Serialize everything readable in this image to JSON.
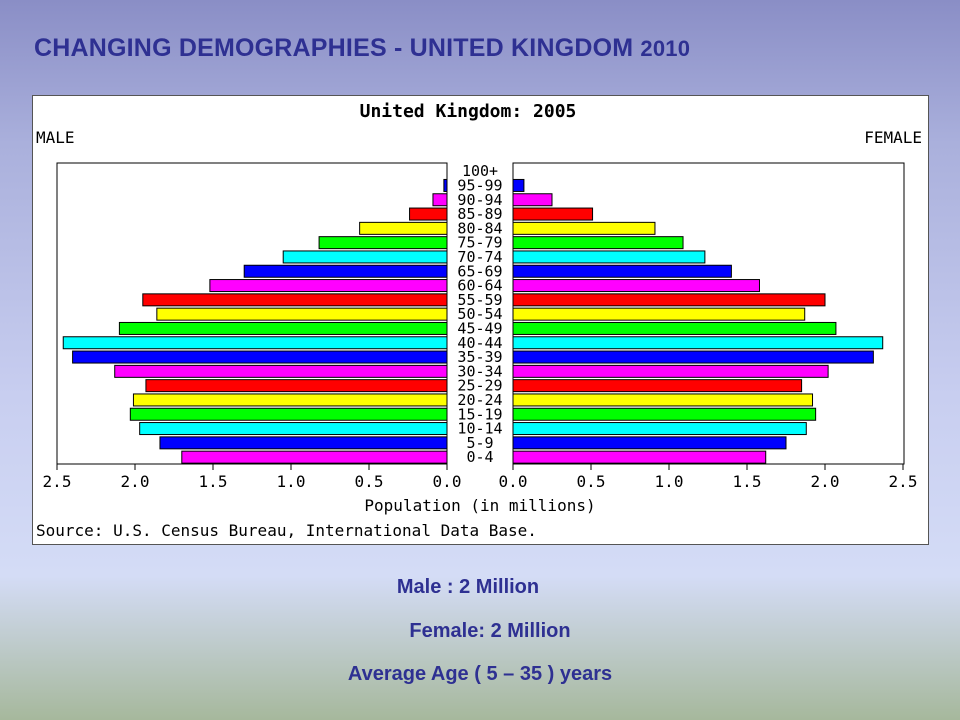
{
  "slide": {
    "title_main": "CHANGING  DEMOGRAPHIES  - UNITED KINGDOM ",
    "title_year": "2010",
    "captions": [
      "Male :  2 Million",
      "Female: 2 Million",
      "Average Age ( 5 – 35 ) years"
    ]
  },
  "chart_data": {
    "type": "bar",
    "title": "United Kingdom: 2005",
    "left_label": "MALE",
    "right_label": "FEMALE",
    "xlabel": "Population (in millions)",
    "source": "Source: U.S. Census Bureau, International Data Base.",
    "xlim": [
      0,
      2.5
    ],
    "x_ticks_left": [
      "2.5",
      "2.0",
      "1.5",
      "1.0",
      "0.5",
      "0.0"
    ],
    "x_ticks_right": [
      "0.0",
      "0.5",
      "1.0",
      "1.5",
      "2.0",
      "2.5"
    ],
    "categories": [
      "0-4",
      "5-9",
      "10-14",
      "15-19",
      "20-24",
      "25-29",
      "30-34",
      "35-39",
      "40-44",
      "45-49",
      "50-54",
      "55-59",
      "60-64",
      "65-69",
      "70-74",
      "75-79",
      "80-84",
      "85-89",
      "90-94",
      "95-99",
      "100+"
    ],
    "series": [
      {
        "name": "MALE",
        "values": [
          1.7,
          1.84,
          1.97,
          2.03,
          2.01,
          1.93,
          2.13,
          2.4,
          2.46,
          2.1,
          1.86,
          1.95,
          1.52,
          1.3,
          1.05,
          0.82,
          0.56,
          0.24,
          0.09,
          0.02,
          0.0
        ]
      },
      {
        "name": "FEMALE",
        "values": [
          1.62,
          1.75,
          1.88,
          1.94,
          1.92,
          1.85,
          2.02,
          2.31,
          2.37,
          2.07,
          1.87,
          2.0,
          1.58,
          1.4,
          1.23,
          1.09,
          0.91,
          0.51,
          0.25,
          0.07,
          0.0
        ]
      }
    ],
    "bar_colors": [
      "#ff00ff",
      "#0000ff",
      "#00ffff",
      "#00ff00",
      "#ffff00",
      "#ff0000",
      "#ff00ff",
      "#0000ff",
      "#00ffff",
      "#00ff00",
      "#ffff00",
      "#ff0000",
      "#ff00ff",
      "#0000ff",
      "#00ffff",
      "#00ff00",
      "#ffff00",
      "#ff0000",
      "#ff00ff",
      "#0000ff",
      "#00ffff"
    ],
    "grid": false
  }
}
